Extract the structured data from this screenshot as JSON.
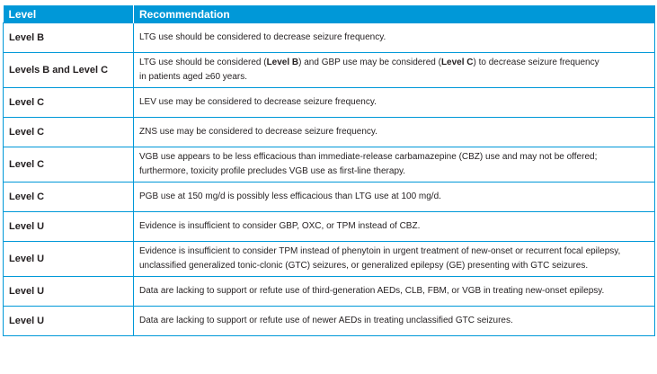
{
  "headers": {
    "level": "Level",
    "recommendation": "Recommendation"
  },
  "rows": [
    {
      "level": "Level B",
      "line1": "LTG use should be considered to decrease seizure frequency."
    },
    {
      "level": "Levels B and Level C",
      "p1": "LTG use should be considered (",
      "b1": "Level B",
      "p2": ") and GBP use may be considered (",
      "b2": "Level C",
      "p3": ") to decrease seizure frequency",
      "line2": "in patients aged ≥60 years."
    },
    {
      "level": "Level C",
      "line1": "LEV use may be considered to decrease seizure frequency."
    },
    {
      "level": "Level C",
      "line1": "ZNS use may be considered to decrease seizure frequency."
    },
    {
      "level": "Level C",
      "line1": "VGB use appears to be less efficacious than immediate-release carbamazepine (CBZ) use and may not be offered;",
      "line2": "furthermore, toxicity profile precludes VGB use as first-line therapy."
    },
    {
      "level": "Level C",
      "line1": "PGB use at 150 mg/d is possibly less efficacious than LTG use at 100 mg/d."
    },
    {
      "level": "Level U",
      "line1": "Evidence is insufficient to consider GBP, OXC, or TPM instead of CBZ."
    },
    {
      "level": "Level U",
      "line1": "Evidence is insufficient to consider TPM instead of phenytoin in urgent treatment of new-onset or recurrent focal epilepsy,",
      "line2": "unclassified generalized tonic-clonic (GTC) seizures, or generalized epilepsy (GE) presenting with GTC seizures."
    },
    {
      "level": "Level U",
      "line1": "Data are lacking to support or refute use of third-generation AEDs, CLB, FBM, or VGB in treating new-onset epilepsy."
    },
    {
      "level": "Level U",
      "line1": "Data are lacking to support or refute use of newer AEDs in treating unclassified GTC seizures."
    }
  ]
}
